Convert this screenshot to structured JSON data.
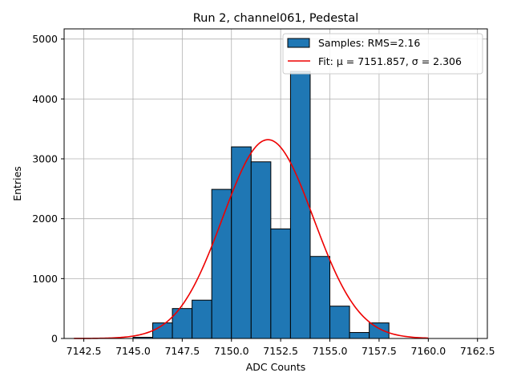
{
  "chart_data": {
    "type": "bar",
    "title": "Run 2, channel061, Pedestal",
    "xlabel": "ADC Counts",
    "ylabel": "Entries",
    "xlim": [
      7141.5,
      7163.0
    ],
    "ylim": [
      0,
      5170
    ],
    "xticks": [
      7142.5,
      7145.0,
      7147.5,
      7150.0,
      7152.5,
      7155.0,
      7157.5,
      7160.0,
      7162.5
    ],
    "xtick_labels": [
      "7142.5",
      "7145.0",
      "7147.5",
      "7150.0",
      "7152.5",
      "7155.0",
      "7157.5",
      "7160.0",
      "7162.5"
    ],
    "yticks": [
      0,
      1000,
      2000,
      3000,
      4000,
      5000
    ],
    "ytick_labels": [
      "0",
      "1000",
      "2000",
      "3000",
      "4000",
      "5000"
    ],
    "grid": true,
    "legend_position": "top-right",
    "histogram": {
      "name": "Samples: RMS=2.16",
      "color": "#1f77b4",
      "bins": [
        {
          "left": 7145.0,
          "right": 7146.0,
          "count": 20
        },
        {
          "left": 7146.0,
          "right": 7147.0,
          "count": 260
        },
        {
          "left": 7147.0,
          "right": 7148.0,
          "count": 500
        },
        {
          "left": 7148.0,
          "right": 7149.0,
          "count": 640
        },
        {
          "left": 7149.0,
          "right": 7150.0,
          "count": 2490
        },
        {
          "left": 7150.0,
          "right": 7151.0,
          "count": 3200
        },
        {
          "left": 7151.0,
          "right": 7152.0,
          "count": 2950
        },
        {
          "left": 7152.0,
          "right": 7153.0,
          "count": 1830
        },
        {
          "left": 7153.0,
          "right": 7154.0,
          "count": 4460
        },
        {
          "left": 7154.0,
          "right": 7155.0,
          "count": 1370
        },
        {
          "left": 7155.0,
          "right": 7156.0,
          "count": 540
        },
        {
          "left": 7156.0,
          "right": 7157.0,
          "count": 100
        },
        {
          "left": 7157.0,
          "right": 7158.0,
          "count": 260
        }
      ]
    },
    "fit": {
      "name": "Fit: μ = 7151.857, σ = 2.306",
      "color": "#ee0000",
      "mu": 7151.857,
      "sigma": 2.306,
      "amplitude": 3320,
      "x_range": [
        7142.0,
        7160.0
      ]
    }
  }
}
